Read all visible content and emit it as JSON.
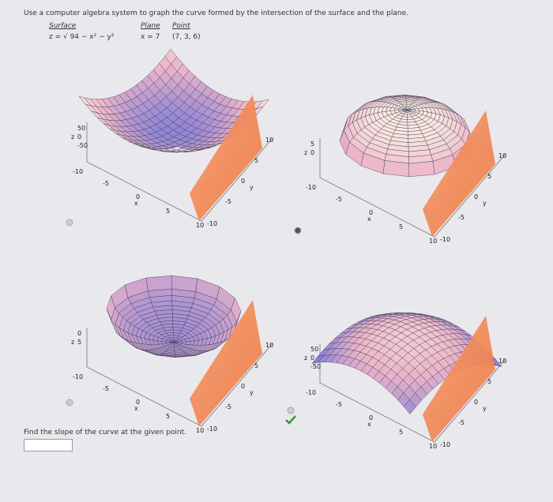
{
  "question": "Use a computer algebra system to graph the curve formed by the intersection of the surface and the plane.",
  "table": {
    "headers": [
      "Surface",
      "Plane",
      "Point"
    ],
    "cells": [
      "z = √ 94 − x² − y²",
      "x = 7",
      "(7, 3, 6)"
    ]
  },
  "plots": [
    {
      "z_label": "z",
      "x_label": "x",
      "y_label": "y",
      "z_ticks": [
        "50",
        "0",
        "-50"
      ],
      "x_ticks": [
        "-10",
        "-5",
        "0",
        "5",
        "10"
      ],
      "y_ticks": [
        "-10",
        "-5",
        "0",
        "5",
        "10"
      ]
    },
    {
      "z_label": "z",
      "x_label": "x",
      "y_label": "y",
      "z_ticks": [
        "5",
        "0"
      ],
      "x_ticks": [
        "-10",
        "-5",
        "0",
        "5",
        "10"
      ],
      "y_ticks": [
        "-10",
        "-5",
        "0",
        "5",
        "10"
      ]
    },
    {
      "z_label": "z",
      "x_label": "x",
      "y_label": "y",
      "z_ticks": [
        "0",
        "5"
      ],
      "x_ticks": [
        "-10",
        "-5",
        "0",
        "5",
        "10"
      ],
      "y_ticks": [
        "-10",
        "-5",
        "0",
        "5",
        "10"
      ]
    },
    {
      "z_label": "z",
      "x_label": "x",
      "y_label": "y",
      "z_ticks": [
        "50",
        "0",
        "-50"
      ],
      "x_ticks": [
        "-10",
        "-5",
        "0",
        "5",
        "10"
      ],
      "y_ticks": [
        "-10",
        "-5",
        "0",
        "5",
        "10"
      ]
    }
  ],
  "followup": "Find the slope of the curve at the given point."
}
